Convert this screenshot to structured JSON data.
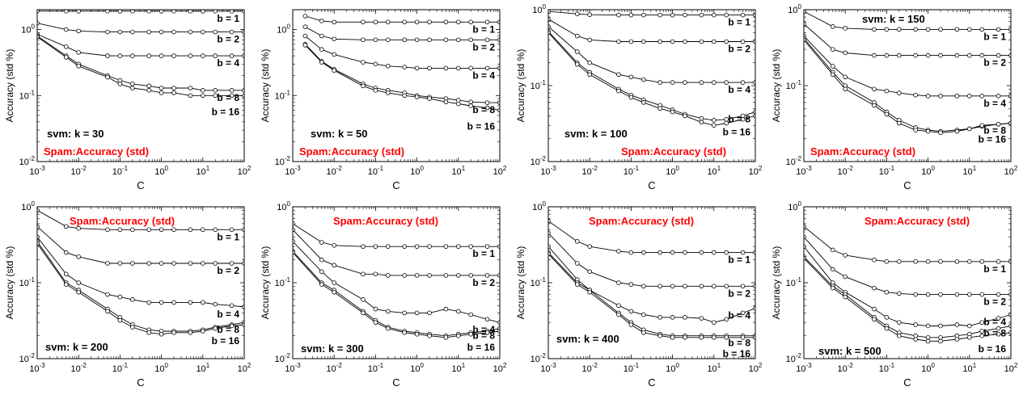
{
  "colors": {
    "annotation_red": "#ff0000",
    "line": "#000000",
    "marker_fill": "#ffffff"
  },
  "common": {
    "title_label": "Spam:Accuracy (std)",
    "xlabel": "C",
    "ylabel": "Accuracy (std %)",
    "x_tick_labels": [
      "10^-3",
      "10^-2",
      "10^-1",
      "10^0",
      "10^1",
      "10^2"
    ],
    "x_ticks": [
      0.001,
      0.01,
      0.1,
      1,
      10,
      100
    ],
    "y_ticks": [
      0.01,
      0.1,
      1
    ],
    "y_tick_labels": [
      "10^-2",
      "10^-1",
      "10^0"
    ]
  },
  "chart_data": [
    {
      "type": "line",
      "svm_label": "svm: k = 30",
      "xscale": "log",
      "yscale": "log",
      "xlim": [
        0.001,
        100
      ],
      "ylim": [
        0.01,
        2
      ],
      "x": [
        0.001,
        0.005,
        0.01,
        0.05,
        0.1,
        0.2,
        0.5,
        1,
        2,
        5,
        10,
        20,
        50,
        100
      ],
      "series": [
        {
          "name": "b = 1",
          "values": [
            1.9,
            1.9,
            1.9,
            1.9,
            1.9,
            1.9,
            1.9,
            1.9,
            1.9,
            1.9,
            1.9,
            1.9,
            1.9,
            1.9
          ]
        },
        {
          "name": "b = 2",
          "values": [
            1.25,
            1.0,
            0.95,
            0.92,
            0.92,
            0.92,
            0.92,
            0.92,
            0.92,
            0.92,
            0.92,
            0.92,
            0.92,
            0.92
          ]
        },
        {
          "name": "b = 4",
          "values": [
            0.85,
            0.55,
            0.45,
            0.4,
            0.4,
            0.4,
            0.4,
            0.4,
            0.4,
            0.4,
            0.4,
            0.4,
            0.4,
            0.4
          ]
        },
        {
          "name": "b = 8",
          "values": [
            0.8,
            0.4,
            0.3,
            0.2,
            0.17,
            0.15,
            0.14,
            0.13,
            0.13,
            0.13,
            0.12,
            0.12,
            0.12,
            0.12
          ]
        },
        {
          "name": "b = 16",
          "values": [
            0.78,
            0.38,
            0.28,
            0.19,
            0.15,
            0.13,
            0.12,
            0.11,
            0.11,
            0.1,
            0.1,
            0.1,
            0.1,
            0.1
          ]
        }
      ]
    },
    {
      "type": "line",
      "svm_label": "svm: k = 50",
      "xscale": "log",
      "yscale": "log",
      "xlim": [
        0.001,
        100
      ],
      "ylim": [
        0.01,
        2
      ],
      "x": [
        0.002,
        0.005,
        0.01,
        0.05,
        0.1,
        0.2,
        0.5,
        1,
        2,
        5,
        10,
        20,
        50,
        100
      ],
      "series": [
        {
          "name": "b = 1",
          "values": [
            1.6,
            1.35,
            1.3,
            1.3,
            1.3,
            1.3,
            1.3,
            1.3,
            1.3,
            1.3,
            1.3,
            1.3,
            1.3,
            1.3
          ]
        },
        {
          "name": "b = 2",
          "values": [
            1.1,
            0.8,
            0.72,
            0.7,
            0.7,
            0.7,
            0.7,
            0.7,
            0.7,
            0.7,
            0.7,
            0.7,
            0.7,
            0.7
          ]
        },
        {
          "name": "b = 4",
          "values": [
            0.8,
            0.5,
            0.42,
            0.32,
            0.3,
            0.28,
            0.27,
            0.26,
            0.26,
            0.26,
            0.26,
            0.26,
            0.26,
            0.26
          ]
        },
        {
          "name": "b = 8",
          "values": [
            0.6,
            0.33,
            0.25,
            0.15,
            0.13,
            0.12,
            0.11,
            0.1,
            0.095,
            0.09,
            0.085,
            0.08,
            0.078,
            0.078
          ]
        },
        {
          "name": "b = 16",
          "values": [
            0.58,
            0.32,
            0.24,
            0.14,
            0.12,
            0.11,
            0.1,
            0.095,
            0.09,
            0.08,
            0.075,
            0.07,
            0.065,
            0.06
          ]
        }
      ]
    },
    {
      "type": "line",
      "svm_label": "svm: k = 100",
      "xscale": "log",
      "yscale": "log",
      "xlim": [
        0.001,
        100
      ],
      "ylim": [
        0.01,
        1
      ],
      "x": [
        0.001,
        0.005,
        0.01,
        0.05,
        0.1,
        0.2,
        0.5,
        1,
        2,
        5,
        10,
        20,
        50,
        100
      ],
      "series": [
        {
          "name": "b = 1",
          "values": [
            0.95,
            0.88,
            0.86,
            0.85,
            0.85,
            0.85,
            0.85,
            0.85,
            0.85,
            0.85,
            0.85,
            0.85,
            0.85,
            0.85
          ]
        },
        {
          "name": "b = 2",
          "values": [
            0.75,
            0.45,
            0.4,
            0.38,
            0.38,
            0.38,
            0.38,
            0.38,
            0.38,
            0.38,
            0.38,
            0.38,
            0.38,
            0.38
          ]
        },
        {
          "name": "b = 4",
          "values": [
            0.6,
            0.28,
            0.2,
            0.14,
            0.13,
            0.12,
            0.11,
            0.11,
            0.11,
            0.11,
            0.11,
            0.11,
            0.11,
            0.11
          ]
        },
        {
          "name": "b = 8",
          "values": [
            0.52,
            0.2,
            0.15,
            0.09,
            0.075,
            0.065,
            0.055,
            0.048,
            0.042,
            0.037,
            0.035,
            0.036,
            0.04,
            0.045
          ]
        },
        {
          "name": "b = 16",
          "values": [
            0.5,
            0.19,
            0.14,
            0.085,
            0.07,
            0.06,
            0.05,
            0.045,
            0.04,
            0.033,
            0.03,
            0.032,
            0.036,
            0.04
          ]
        }
      ]
    },
    {
      "type": "line",
      "svm_label": "svm: k = 150",
      "xscale": "log",
      "yscale": "log",
      "xlim": [
        0.001,
        100
      ],
      "ylim": [
        0.01,
        1
      ],
      "x": [
        0.001,
        0.005,
        0.01,
        0.05,
        0.1,
        0.2,
        0.5,
        1,
        2,
        5,
        10,
        20,
        50,
        100
      ],
      "series": [
        {
          "name": "b = 1",
          "values": [
            0.95,
            0.6,
            0.57,
            0.55,
            0.55,
            0.55,
            0.55,
            0.55,
            0.55,
            0.55,
            0.55,
            0.55,
            0.55,
            0.55
          ]
        },
        {
          "name": "b = 2",
          "values": [
            0.65,
            0.3,
            0.27,
            0.25,
            0.25,
            0.25,
            0.25,
            0.25,
            0.25,
            0.25,
            0.25,
            0.25,
            0.25,
            0.25
          ]
        },
        {
          "name": "b = 4",
          "values": [
            0.45,
            0.18,
            0.13,
            0.09,
            0.085,
            0.08,
            0.075,
            0.073,
            0.073,
            0.073,
            0.073,
            0.073,
            0.073,
            0.073
          ]
        },
        {
          "name": "b = 8",
          "values": [
            0.42,
            0.15,
            0.1,
            0.06,
            0.045,
            0.035,
            0.028,
            0.026,
            0.025,
            0.026,
            0.027,
            0.029,
            0.031,
            0.032
          ]
        },
        {
          "name": "b = 16",
          "values": [
            0.4,
            0.14,
            0.09,
            0.055,
            0.042,
            0.032,
            0.026,
            0.025,
            0.024,
            0.025,
            0.027,
            0.03,
            0.031,
            0.032
          ]
        }
      ]
    },
    {
      "type": "line",
      "svm_label": "svm: k = 200",
      "xscale": "log",
      "yscale": "log",
      "xlim": [
        0.001,
        100
      ],
      "ylim": [
        0.01,
        1
      ],
      "x": [
        0.001,
        0.005,
        0.01,
        0.05,
        0.1,
        0.2,
        0.5,
        1,
        2,
        5,
        10,
        20,
        50,
        100
      ],
      "series": [
        {
          "name": "b = 1",
          "values": [
            0.9,
            0.55,
            0.52,
            0.5,
            0.5,
            0.5,
            0.5,
            0.5,
            0.5,
            0.5,
            0.5,
            0.5,
            0.5,
            0.5
          ]
        },
        {
          "name": "b = 2",
          "values": [
            0.55,
            0.25,
            0.22,
            0.18,
            0.18,
            0.18,
            0.18,
            0.18,
            0.18,
            0.18,
            0.18,
            0.18,
            0.18,
            0.18
          ]
        },
        {
          "name": "b = 4",
          "values": [
            0.4,
            0.13,
            0.1,
            0.07,
            0.065,
            0.06,
            0.055,
            0.055,
            0.055,
            0.055,
            0.055,
            0.052,
            0.05,
            0.048
          ]
        },
        {
          "name": "b = 8",
          "values": [
            0.35,
            0.1,
            0.08,
            0.045,
            0.035,
            0.028,
            0.024,
            0.023,
            0.023,
            0.023,
            0.024,
            0.026,
            0.028,
            0.03
          ]
        },
        {
          "name": "b = 16",
          "values": [
            0.33,
            0.095,
            0.075,
            0.042,
            0.032,
            0.026,
            0.022,
            0.021,
            0.022,
            0.022,
            0.023,
            0.025,
            0.027,
            0.028
          ]
        }
      ]
    },
    {
      "type": "line",
      "svm_label": "svm: k = 300",
      "xscale": "log",
      "yscale": "log",
      "xlim": [
        0.001,
        100
      ],
      "ylim": [
        0.01,
        1
      ],
      "x": [
        0.001,
        0.005,
        0.01,
        0.05,
        0.1,
        0.2,
        0.5,
        1,
        2,
        5,
        10,
        20,
        50,
        100
      ],
      "series": [
        {
          "name": "b = 1",
          "values": [
            0.6,
            0.34,
            0.31,
            0.3,
            0.3,
            0.3,
            0.3,
            0.3,
            0.3,
            0.3,
            0.3,
            0.3,
            0.3,
            0.3
          ]
        },
        {
          "name": "b = 2",
          "values": [
            0.5,
            0.2,
            0.17,
            0.13,
            0.13,
            0.125,
            0.125,
            0.125,
            0.125,
            0.125,
            0.125,
            0.125,
            0.125,
            0.125
          ]
        },
        {
          "name": "b = 4",
          "values": [
            0.35,
            0.14,
            0.1,
            0.06,
            0.045,
            0.042,
            0.04,
            0.04,
            0.04,
            0.045,
            0.042,
            0.038,
            0.033,
            0.03
          ]
        },
        {
          "name": "b = 8",
          "values": [
            0.26,
            0.1,
            0.08,
            0.042,
            0.032,
            0.026,
            0.023,
            0.022,
            0.021,
            0.02,
            0.021,
            0.022,
            0.023,
            0.025
          ]
        },
        {
          "name": "b = 16",
          "values": [
            0.25,
            0.095,
            0.075,
            0.04,
            0.03,
            0.025,
            0.022,
            0.021,
            0.02,
            0.019,
            0.02,
            0.021,
            0.022,
            0.023
          ]
        }
      ]
    },
    {
      "type": "line",
      "svm_label": "svm: k = 400",
      "xscale": "log",
      "yscale": "log",
      "xlim": [
        0.001,
        100
      ],
      "ylim": [
        0.01,
        1
      ],
      "x": [
        0.001,
        0.005,
        0.01,
        0.05,
        0.1,
        0.2,
        0.5,
        1,
        2,
        5,
        10,
        20,
        50,
        100
      ],
      "series": [
        {
          "name": "b = 1",
          "values": [
            0.65,
            0.35,
            0.3,
            0.26,
            0.25,
            0.25,
            0.25,
            0.25,
            0.25,
            0.25,
            0.25,
            0.25,
            0.25,
            0.25
          ]
        },
        {
          "name": "b = 2",
          "values": [
            0.45,
            0.18,
            0.14,
            0.1,
            0.095,
            0.09,
            0.09,
            0.09,
            0.09,
            0.09,
            0.09,
            0.09,
            0.09,
            0.09
          ]
        },
        {
          "name": "b = 4",
          "values": [
            0.3,
            0.11,
            0.08,
            0.05,
            0.042,
            0.038,
            0.035,
            0.035,
            0.035,
            0.034,
            0.03,
            0.033,
            0.04,
            0.046
          ]
        },
        {
          "name": "b = 8",
          "values": [
            0.25,
            0.1,
            0.08,
            0.04,
            0.03,
            0.024,
            0.021,
            0.02,
            0.02,
            0.02,
            0.02,
            0.02,
            0.02,
            0.02
          ]
        },
        {
          "name": "b = 16",
          "values": [
            0.24,
            0.095,
            0.075,
            0.038,
            0.028,
            0.022,
            0.02,
            0.019,
            0.019,
            0.019,
            0.019,
            0.019,
            0.019,
            0.019
          ]
        }
      ]
    },
    {
      "type": "line",
      "svm_label": "svm: k = 500",
      "xscale": "log",
      "yscale": "log",
      "xlim": [
        0.001,
        100
      ],
      "ylim": [
        0.01,
        1
      ],
      "x": [
        0.001,
        0.005,
        0.01,
        0.05,
        0.1,
        0.2,
        0.5,
        1,
        2,
        5,
        10,
        20,
        50,
        100
      ],
      "series": [
        {
          "name": "b = 1",
          "values": [
            0.55,
            0.27,
            0.23,
            0.2,
            0.19,
            0.19,
            0.19,
            0.19,
            0.19,
            0.19,
            0.19,
            0.19,
            0.19,
            0.19
          ]
        },
        {
          "name": "b = 2",
          "values": [
            0.4,
            0.15,
            0.12,
            0.085,
            0.075,
            0.072,
            0.07,
            0.07,
            0.07,
            0.07,
            0.07,
            0.07,
            0.07,
            0.07
          ]
        },
        {
          "name": "b = 4",
          "values": [
            0.3,
            0.1,
            0.075,
            0.045,
            0.035,
            0.03,
            0.028,
            0.027,
            0.027,
            0.028,
            0.027,
            0.03,
            0.034,
            0.038
          ]
        },
        {
          "name": "b = 8",
          "values": [
            0.22,
            0.09,
            0.07,
            0.035,
            0.027,
            0.022,
            0.02,
            0.019,
            0.019,
            0.02,
            0.021,
            0.023,
            0.025,
            0.027
          ]
        },
        {
          "name": "b = 16",
          "values": [
            0.21,
            0.085,
            0.065,
            0.033,
            0.025,
            0.02,
            0.018,
            0.017,
            0.017,
            0.018,
            0.019,
            0.02,
            0.021,
            0.022
          ]
        }
      ]
    }
  ]
}
